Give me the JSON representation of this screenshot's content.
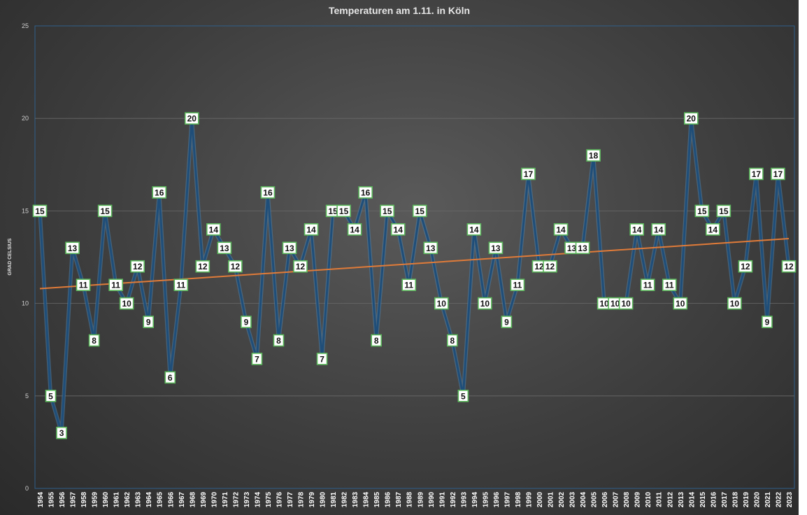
{
  "chart_data": {
    "type": "line",
    "title": "Temperaturen am 1.11. in Köln",
    "xlabel": "",
    "ylabel": "GRAD CELSIUS",
    "ylim": [
      0,
      25
    ],
    "yticks": [
      0,
      5,
      10,
      15,
      20,
      25
    ],
    "grid": true,
    "legend": "none",
    "x": [
      1954,
      1955,
      1956,
      1957,
      1958,
      1959,
      1960,
      1961,
      1962,
      1963,
      1964,
      1965,
      1966,
      1967,
      1968,
      1969,
      1970,
      1971,
      1972,
      1973,
      1974,
      1975,
      1976,
      1977,
      1978,
      1979,
      1980,
      1981,
      1982,
      1983,
      1984,
      1985,
      1986,
      1987,
      1988,
      1989,
      1990,
      1991,
      1992,
      1993,
      1994,
      1995,
      1996,
      1997,
      1998,
      1999,
      2000,
      2001,
      2002,
      2003,
      2004,
      2005,
      2006,
      2007,
      2008,
      2009,
      2010,
      2011,
      2012,
      2013,
      2014,
      2015,
      2016,
      2017,
      2018,
      2019,
      2020,
      2021,
      2022,
      2023
    ],
    "series": [
      {
        "values": [
          15,
          5,
          3,
          13,
          11,
          8,
          15,
          11,
          10,
          12,
          9,
          16,
          6,
          11,
          20,
          12,
          14,
          13,
          12,
          9,
          7,
          16,
          8,
          13,
          12,
          14,
          7,
          15,
          15,
          14,
          16,
          8,
          15,
          14,
          11,
          15,
          13,
          10,
          8,
          5,
          14,
          10,
          13,
          9,
          11,
          17,
          12,
          12,
          14,
          13,
          13,
          18,
          10,
          10,
          10,
          14,
          11,
          14,
          11,
          10,
          20,
          15,
          14,
          15,
          10,
          12,
          17,
          9,
          17,
          12
        ],
        "color": "#1f4e79",
        "label_border": "#5cb85c"
      }
    ],
    "trendline": {
      "start": 10.8,
      "end": 13.5,
      "color": "#e07b39"
    }
  }
}
